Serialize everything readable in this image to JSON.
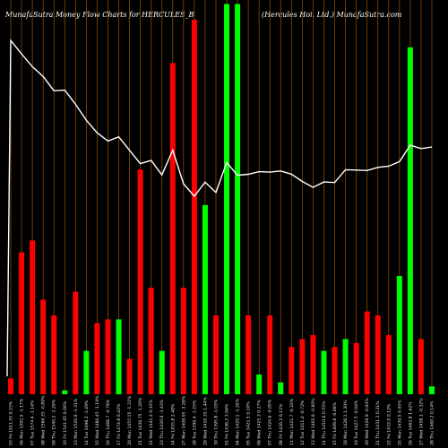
{
  "header": {
    "left": "MunafaSutra  Money Flow  Charts for HERCULES_B",
    "right": "(Hercules Hoi. Ltd.) MunafaSutra.com"
  },
  "colors": {
    "background": "#000000",
    "grid": "#8b4a0a",
    "up": "#00ff00",
    "down": "#ff0000",
    "price_line": "#ffffff"
  },
  "chart_data": {
    "type": "bar",
    "title": "",
    "xlabel": "",
    "ylabel": "",
    "ylim": [
      0,
      100
    ],
    "categories": [
      "03 Fri 1611.55 0.15%",
      "06 Mon 1592.5 -1.17%",
      "07 Tue 1574.4 -1.14%",
      "08 Wed 1560.35 -0.89%",
      "09 Thu 1540.2 -1.29%",
      "10 Fri 1541.05 0.06%",
      "13 Mon 1520.9 -1.31%",
      "14 Tue 1498.2 -1.49%",
      "15 Wed 1480.45 -1.19%",
      "16 Thu 1468.7 -0.79%",
      "17 Fri 1474.8 0.42%",
      "20 Mon 1455.55 -1.31%",
      "21 Tue 1436.75 -1.29%",
      "22 Wed 1441.2 0.31%",
      "23 Thu 1420.6 -1.43%",
      "24 Fri 1455.8 2.48%",
      "27 Mon 1408.05 -3.28%",
      "28 Tue 1390.4 -1.25%",
      "29 Wed 1410.35 1.44%",
      "30 Thu 1395.8 -1.03%",
      "01 Fri 1438.2 3.04%",
      "04 Mon 1420.1 -1.26%",
      "05 Tue 1421.5 0.10%",
      "06 Wed 1425.3 0.27%",
      "07 Thu 1424.6 -0.05%",
      "08 Fri 1426.2 0.11%",
      "11 Mon 1421.7 -0.32%",
      "12 Tue 1411.4 -0.72%",
      "13 Wed 1402.9 -0.60%",
      "14 Thu 1410.6 0.55%",
      "15 Fri 1409.8 -0.06%",
      "18 Mon 1428.1 1.30%",
      "19 Tue 1427.5 -0.04%",
      "20 Wed 1426.9 -0.04%",
      "21 Thu 1431.3 0.31%",
      "22 Fri 1433.0 0.12%",
      "25 Mon 1439.5 0.45%",
      "26 Tue 1462.8 1.62%",
      "27 Wed 1458.1 -0.32%",
      "28 Thu 1460.2 0.14%"
    ],
    "series": [
      {
        "values": [
          4,
          36,
          39,
          24,
          20,
          1,
          26,
          11,
          18,
          19,
          19,
          9,
          57,
          27,
          11,
          84,
          27,
          95,
          48,
          20,
          99,
          99,
          20,
          5,
          20,
          3,
          12,
          14,
          15,
          11,
          12,
          14,
          13,
          21,
          20,
          15,
          30,
          88,
          14,
          2
        ]
      },
      {
        "values": [
          1611.55,
          1592.5,
          1574.4,
          1560.35,
          1540.2,
          1541.05,
          1520.9,
          1498.2,
          1480.45,
          1468.7,
          1474.8,
          1455.55,
          1436.75,
          1441.2,
          1420.6,
          1455.8,
          1408.05,
          1390.4,
          1410.35,
          1395.8,
          1438.2,
          1420.1,
          1421.5,
          1425.3,
          1424.6,
          1426.2,
          1421.7,
          1411.4,
          1402.9,
          1410.6,
          1409.8,
          1428.1,
          1427.5,
          1426.9,
          1431.3,
          1433.0,
          1439.5,
          1462.8,
          1458.1,
          1460.2
        ]
      }
    ],
    "bar_colors": [
      "red",
      "red",
      "red",
      "red",
      "red",
      "green",
      "red",
      "green",
      "red",
      "red",
      "green",
      "red",
      "red",
      "red",
      "green",
      "red",
      "red",
      "red",
      "green",
      "red",
      "green",
      "green",
      "red",
      "green",
      "red",
      "green",
      "red",
      "red",
      "red",
      "green",
      "red",
      "green",
      "red",
      "red",
      "red",
      "red",
      "green",
      "green",
      "red",
      "green"
    ],
    "price_range": [
      1300,
      1650
    ],
    "grid": true,
    "legend": "none"
  }
}
